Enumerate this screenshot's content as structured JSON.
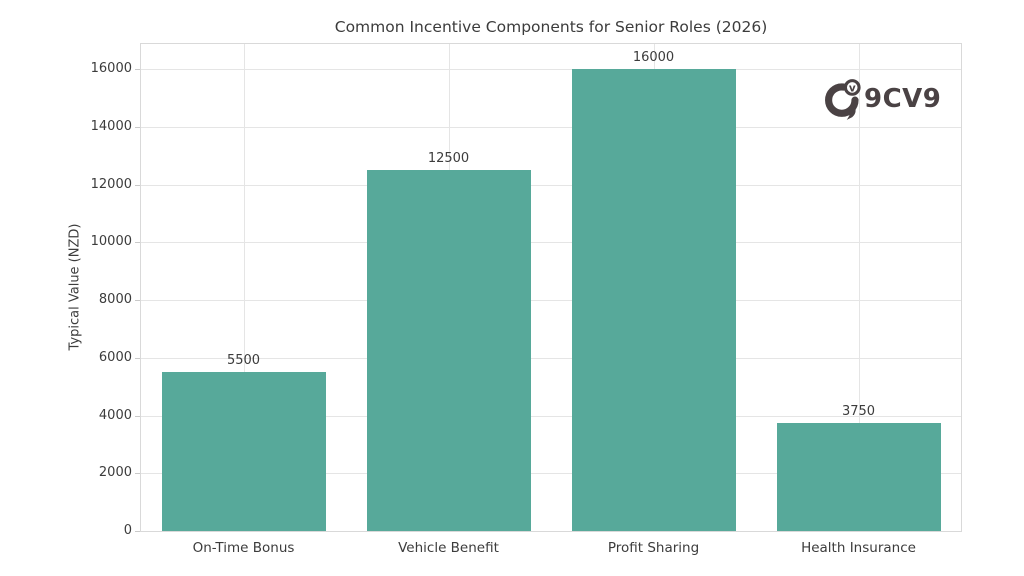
{
  "chart_data": {
    "type": "bar",
    "title": "Common Incentive Components for Senior Roles (2026)",
    "categories": [
      "On-Time Bonus",
      "Vehicle Benefit",
      "Profit Sharing",
      "Health Insurance"
    ],
    "values": [
      5500,
      12500,
      16000,
      3750
    ],
    "value_labels": [
      "5500",
      "12500",
      "16000",
      "3750"
    ],
    "xlabel": "",
    "ylabel": "Typical Value (NZD)",
    "ylim": [
      0,
      16870
    ],
    "yticks": [
      0,
      2000,
      4000,
      6000,
      8000,
      10000,
      12000,
      14000,
      16000
    ],
    "grid": true,
    "legend": "none",
    "bar_color": "#57a99a"
  },
  "watermark": {
    "text": "9CV9",
    "icon": "9cv9-logo-icon",
    "color": "#4a4244"
  },
  "colors": {
    "background": "#ffffff",
    "bar": "#57a99a",
    "grid": "#e5e5e5",
    "axis_border": "#d9d9d9",
    "text": "#3c3c3c",
    "logo": "#4a4244"
  }
}
